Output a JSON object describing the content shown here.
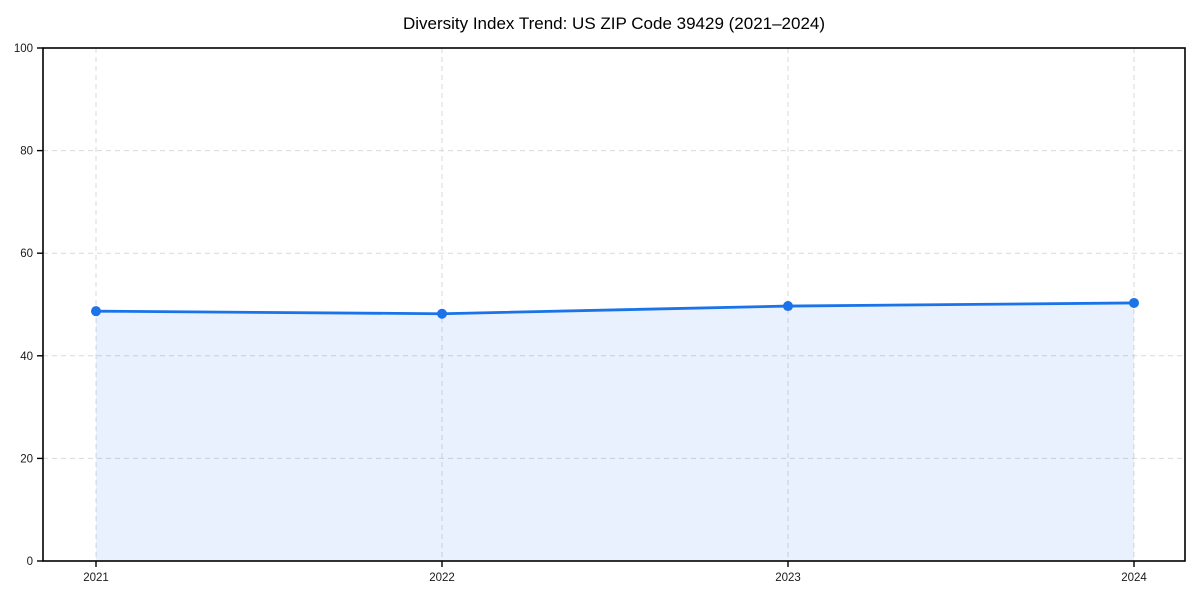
{
  "page": {
    "background": "#ffffff"
  },
  "chart_data": {
    "type": "line",
    "title": "Diversity Index Trend: US ZIP Code 39429 (2021–2024)",
    "xlabel": "",
    "ylabel": "",
    "categories": [
      "2021",
      "2022",
      "2023",
      "2024"
    ],
    "series": [
      {
        "name": "Diversity Index",
        "values": [
          48.7,
          48.2,
          49.7,
          50.3
        ]
      }
    ],
    "ylim": [
      0,
      100
    ],
    "yticks": [
      0,
      20,
      40,
      60,
      80,
      100
    ],
    "grid": true,
    "grid_style": "dashed",
    "legend": false,
    "area_fill": true,
    "markers": true,
    "colors": {
      "line": "#1a73e8",
      "marker": "#1a73e8",
      "fill_opacity": 0.1,
      "grid": "#d9d9d9",
      "axis": "#000000",
      "text": "#1a1a1a",
      "background": "#ffffff"
    }
  }
}
